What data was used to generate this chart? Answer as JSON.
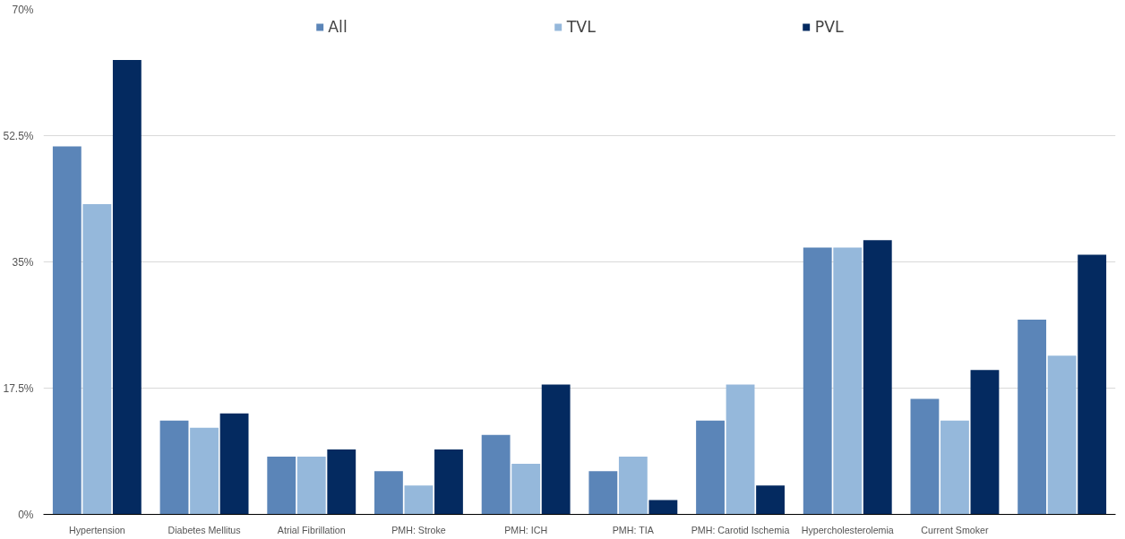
{
  "chart_data": {
    "type": "bar",
    "categories": [
      "Hypertension",
      "Diabetes Mellitus",
      "Atrial Fibrillation",
      "PMH: Stroke",
      "PMH: ICH",
      "PMH: TIA",
      "PMH: Carotid Ischemia",
      "Hypercholesterolemia",
      "Current Smoker",
      null
    ],
    "series": [
      {
        "name": "All",
        "color": "#5b85b8",
        "values": [
          51,
          13,
          8,
          6,
          11,
          6,
          13,
          37,
          16,
          27
        ]
      },
      {
        "name": "TVL",
        "color": "#95b8db",
        "values": [
          43,
          12,
          8,
          4,
          7,
          8,
          18,
          37,
          13,
          22
        ]
      },
      {
        "name": "PVL",
        "color": "#042a60",
        "values": [
          63,
          14,
          9,
          9,
          18,
          2,
          4,
          38,
          20,
          36
        ]
      }
    ],
    "ylim": [
      0,
      70
    ],
    "yticks": [
      {
        "value": 0,
        "label": "0%"
      },
      {
        "value": 17.5,
        "label": "17.5%"
      },
      {
        "value": 35,
        "label": "35%"
      },
      {
        "value": 52.5,
        "label": "52.5%"
      },
      {
        "value": 70,
        "label": "70%"
      }
    ],
    "grid": "y",
    "legend": "top"
  }
}
